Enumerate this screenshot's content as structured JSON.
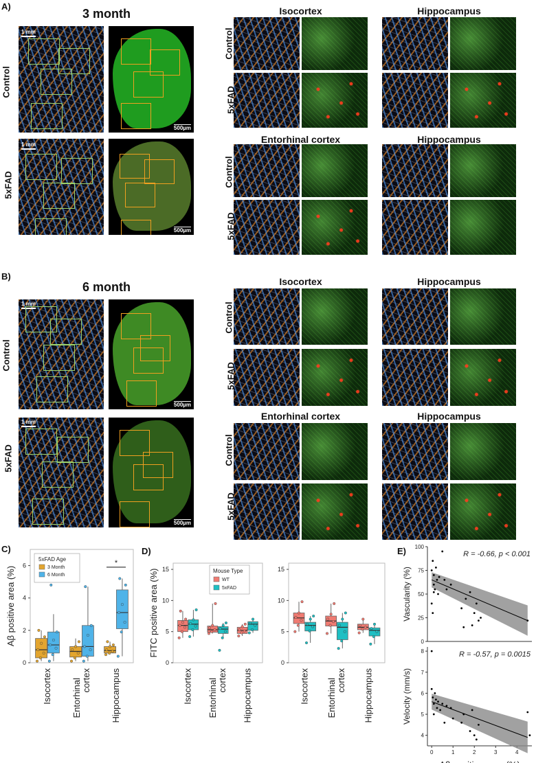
{
  "panels": {
    "A": {
      "label": "A)",
      "title": "3 month"
    },
    "B": {
      "label": "B)",
      "title": "6 month"
    },
    "C": {
      "label": "C)"
    },
    "D": {
      "label": "D)"
    },
    "E": {
      "label": "E)"
    }
  },
  "images": {
    "row_labels": {
      "control": "Control",
      "fad": "5xFAD"
    },
    "region_titles": {
      "isocortex": "Isocortex",
      "hippocampus": "Hippocampus",
      "entorhinal": "Entorhinal cortex"
    },
    "scalebar_mm": "1 mm",
    "scalebar_um": "500µm"
  },
  "chart_data": [
    {
      "id": "C",
      "type": "box",
      "ylabel": "Aβ positive area (%)",
      "ylim": [
        0,
        7
      ],
      "yticks": [
        0,
        2,
        4,
        6
      ],
      "categories": [
        "Isocortex",
        "Entorhinal cortex",
        "Hippocampus"
      ],
      "legend": {
        "title": "5xFAD Age",
        "position": "top-left"
      },
      "series": [
        {
          "name": "3 Month",
          "color": "#e3a52f",
          "boxes": [
            {
              "min": 0.1,
              "q1": 0.3,
              "median": 0.8,
              "q3": 1.5,
              "max": 2.0,
              "points": [
                0.1,
                0.3,
                0.6,
                0.8,
                1.2,
                1.6,
                2.0
              ]
            },
            {
              "min": 0.1,
              "q1": 0.35,
              "median": 0.7,
              "q3": 1.0,
              "max": 1.5,
              "points": [
                0.1,
                0.3,
                0.6,
                0.8,
                1.0,
                1.3
              ]
            },
            {
              "min": 0.5,
              "q1": 0.6,
              "median": 0.75,
              "q3": 1.0,
              "max": 1.3,
              "points": [
                0.5,
                0.6,
                0.7,
                0.8,
                1.0,
                1.1,
                1.3
              ]
            }
          ]
        },
        {
          "name": "6 Month",
          "color": "#4fb3e8",
          "boxes": [
            {
              "min": 0.1,
              "q1": 0.6,
              "median": 1.1,
              "q3": 1.9,
              "max": 3.0,
              "points": [
                0.1,
                0.5,
                0.9,
                1.1,
                1.4,
                1.9,
                4.8
              ]
            },
            {
              "min": 0.1,
              "q1": 0.4,
              "median": 1.0,
              "q3": 2.3,
              "max": 4.7,
              "points": [
                0.1,
                0.4,
                0.8,
                1.0,
                1.7,
                2.3,
                4.7
              ]
            },
            {
              "min": 0.4,
              "q1": 2.1,
              "median": 3.1,
              "q3": 4.5,
              "max": 5.2,
              "points": [
                0.4,
                1.9,
                2.5,
                3.1,
                3.6,
                4.8,
                5.2
              ]
            }
          ]
        }
      ],
      "annotation": "*"
    },
    {
      "id": "D1",
      "type": "box",
      "ylabel": "FITC positive area (%)",
      "ylim": [
        0,
        16
      ],
      "yticks": [
        0,
        5,
        10,
        15
      ],
      "categories": [
        "Isocortex",
        "Entorhinal cortex",
        "Hippocampus"
      ],
      "legend": {
        "title": "Mouse Type",
        "position": "top-center"
      },
      "series": [
        {
          "name": "WT",
          "color": "#f07b72",
          "boxes": [
            {
              "min": 4.0,
              "q1": 5.0,
              "median": 6.0,
              "q3": 6.8,
              "max": 8.3,
              "points": [
                4.0,
                5.0,
                5.7,
                6.0,
                6.5,
                7.0,
                8.3
              ]
            },
            {
              "min": 4.7,
              "q1": 4.9,
              "median": 5.3,
              "q3": 5.9,
              "max": 9.5,
              "points": [
                4.7,
                5.0,
                5.3,
                5.6,
                6.0,
                9.5
              ]
            },
            {
              "min": 4.3,
              "q1": 4.7,
              "median": 5.2,
              "q3": 5.7,
              "max": 6.2,
              "points": [
                4.3,
                4.8,
                5.1,
                5.3,
                5.8,
                6.2
              ]
            }
          ]
        },
        {
          "name": "5xFAD",
          "color": "#1fbfc3",
          "boxes": [
            {
              "min": 4.2,
              "q1": 5.3,
              "median": 6.2,
              "q3": 6.9,
              "max": 8.5,
              "points": [
                4.2,
                5.3,
                5.9,
                6.3,
                6.9,
                8.5
              ]
            },
            {
              "min": 4.0,
              "q1": 4.7,
              "median": 5.4,
              "q3": 5.8,
              "max": 6.4,
              "points": [
                2.0,
                4.0,
                5.0,
                5.5,
                6.0,
                6.4
              ]
            },
            {
              "min": 4.8,
              "q1": 5.2,
              "median": 6.2,
              "q3": 6.6,
              "max": 7.0,
              "points": [
                4.8,
                5.3,
                6.0,
                6.4,
                7.0
              ]
            }
          ]
        }
      ]
    },
    {
      "id": "D2",
      "type": "box",
      "ylabel": "",
      "ylim": [
        0,
        16
      ],
      "yticks": [
        0,
        5,
        10,
        15
      ],
      "categories": [
        "Isocortex",
        "Entorhinal cortex",
        "Hippocampus"
      ],
      "series": [
        {
          "name": "WT",
          "color": "#f07b72",
          "boxes": [
            {
              "min": 5.0,
              "q1": 6.3,
              "median": 7.2,
              "q3": 8.0,
              "max": 9.8,
              "points": [
                5.0,
                6.0,
                6.8,
                7.3,
                8.0,
                9.8
              ]
            },
            {
              "min": 4.7,
              "q1": 5.9,
              "median": 6.7,
              "q3": 7.5,
              "max": 9.5,
              "points": [
                4.7,
                6.0,
                6.6,
                7.0,
                7.8,
                9.5
              ]
            },
            {
              "min": 4.8,
              "q1": 5.3,
              "median": 5.7,
              "q3": 6.2,
              "max": 7.0,
              "points": [
                4.8,
                5.4,
                5.7,
                6.0,
                7.0
              ]
            }
          ]
        },
        {
          "name": "5xFAD",
          "color": "#1fbfc3",
          "boxes": [
            {
              "min": 3.2,
              "q1": 5.1,
              "median": 6.0,
              "q3": 6.5,
              "max": 7.5,
              "points": [
                3.2,
                5.1,
                5.8,
                6.2,
                7.0,
                7.5
              ]
            },
            {
              "min": 2.3,
              "q1": 3.7,
              "median": 5.7,
              "q3": 6.5,
              "max": 8.0,
              "points": [
                2.3,
                3.5,
                5.0,
                6.0,
                7.0,
                8.0
              ]
            },
            {
              "min": 3.0,
              "q1": 4.3,
              "median": 5.2,
              "q3": 5.6,
              "max": 6.2,
              "points": [
                3.0,
                4.2,
                5.0,
                5.5,
                6.2
              ]
            }
          ]
        }
      ]
    },
    {
      "id": "E1",
      "type": "scatter",
      "ylabel": "Vascularity (%)",
      "ylim": [
        0,
        100
      ],
      "yticks": [
        0,
        25,
        50,
        75,
        100
      ],
      "xlim": [
        -0.2,
        4.7
      ],
      "annotation": "R = -0.66, p < 0.001",
      "fit": {
        "x": [
          0,
          4.5
        ],
        "y": [
          65,
          22
        ]
      },
      "points": [
        [
          0.0,
          75
        ],
        [
          0.05,
          85
        ],
        [
          0.1,
          70
        ],
        [
          0.1,
          60
        ],
        [
          0.15,
          55
        ],
        [
          0.2,
          78
        ],
        [
          0.25,
          65
        ],
        [
          0.3,
          50
        ],
        [
          0.35,
          68
        ],
        [
          0.5,
          95
        ],
        [
          0.6,
          65
        ],
        [
          0.0,
          40
        ],
        [
          0.05,
          30
        ],
        [
          0.1,
          52
        ],
        [
          0.7,
          55
        ],
        [
          0.9,
          60
        ],
        [
          1.4,
          35
        ],
        [
          1.5,
          15
        ],
        [
          1.6,
          45
        ],
        [
          1.8,
          52
        ],
        [
          2.0,
          30
        ],
        [
          2.1,
          40
        ],
        [
          2.2,
          22
        ],
        [
          4.5,
          22
        ],
        [
          1.9,
          17
        ],
        [
          2.3,
          25
        ]
      ]
    },
    {
      "id": "E2",
      "type": "scatter",
      "ylabel": "Velocity (mm/s)",
      "xlabel": "Aβ positive area (%)",
      "ylim": [
        3.5,
        8.2
      ],
      "yticks": [
        4,
        5,
        6,
        7,
        8
      ],
      "xlim": [
        -0.2,
        4.7
      ],
      "xticks": [
        0,
        1,
        2,
        3,
        4
      ],
      "annotation": "R = -0.57, p = 0.0015",
      "fit": {
        "x": [
          0,
          4.5
        ],
        "y": [
          5.6,
          3.9
        ]
      },
      "points": [
        [
          0.0,
          8.0
        ],
        [
          0.0,
          6.2
        ],
        [
          0.05,
          5.8
        ],
        [
          0.1,
          5.5
        ],
        [
          0.1,
          5.0
        ],
        [
          0.15,
          6.0
        ],
        [
          0.2,
          5.7
        ],
        [
          0.25,
          5.3
        ],
        [
          0.3,
          5.6
        ],
        [
          0.4,
          5.2
        ],
        [
          0.5,
          5.5
        ],
        [
          0.6,
          4.6
        ],
        [
          0.7,
          5.4
        ],
        [
          0.9,
          5.3
        ],
        [
          1.0,
          4.8
        ],
        [
          1.4,
          4.6
        ],
        [
          1.5,
          5.0
        ],
        [
          1.8,
          4.2
        ],
        [
          1.9,
          5.2
        ],
        [
          2.0,
          4.0
        ],
        [
          2.1,
          3.8
        ],
        [
          2.2,
          4.5
        ],
        [
          4.5,
          5.1
        ],
        [
          4.6,
          4.0
        ]
      ]
    }
  ]
}
